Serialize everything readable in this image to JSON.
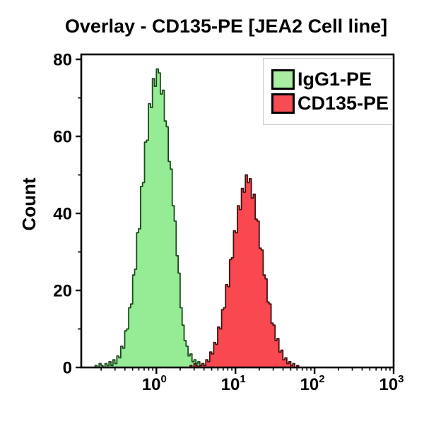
{
  "figure": {
    "background": "#ffffff",
    "frame_color": "#000000",
    "text_color": "#000000"
  },
  "chart_data": {
    "type": "area",
    "subtype": "flow-cytometry-histogram-overlay",
    "title": "Overlay - CD135-PE [JEA2 Cell line]",
    "xlabel": "",
    "ylabel": "Count",
    "xscale": "log10",
    "x_range_log10": [
      -0.95,
      3
    ],
    "ylim": [
      0,
      80
    ],
    "grid": false,
    "legend_position": "top-right",
    "x_axis": {
      "ticks": [
        {
          "base": "10",
          "exp": "0",
          "value": 1
        },
        {
          "base": "10",
          "exp": "1",
          "value": 10
        },
        {
          "base": "10",
          "exp": "2",
          "value": 100
        },
        {
          "base": "10",
          "exp": "3",
          "value": 1000
        }
      ]
    },
    "y_axis": {
      "ticks": [
        0,
        20,
        40,
        60,
        80
      ],
      "minor_ticks": [
        10,
        30,
        50,
        70
      ]
    },
    "series": [
      {
        "name": "IgG1-PE",
        "fill": "#95ec95",
        "stroke": "#1b4a1b",
        "legend_fill": "#a8eda2",
        "peak_count": 77.5,
        "peak_x_log10": 0.0,
        "x0": -0.8,
        "dx": 0.025,
        "counts": [
          0,
          0.5,
          0,
          1,
          0.5,
          0,
          1,
          0.5,
          1.5,
          0.5,
          2,
          1,
          3,
          2.5,
          5.5,
          5,
          9.5,
          10,
          15.5,
          16.5,
          24,
          25.5,
          35,
          36,
          47,
          48,
          58.5,
          59,
          68.5,
          67.5,
          75,
          73,
          77.5,
          76.5,
          71,
          72,
          64,
          62.5,
          53.5,
          51.5,
          42,
          38,
          29,
          24.5,
          15.5,
          11,
          7,
          5.5,
          3,
          3.5,
          1.5,
          2,
          1,
          1.5,
          0.5,
          1,
          0.5,
          0.5,
          0,
          0.5,
          0,
          0.5,
          0,
          0,
          1,
          0,
          0.5,
          0,
          0,
          0.5,
          0,
          1,
          0,
          0,
          0.5,
          0,
          0.5,
          0,
          1,
          0,
          0,
          0.5,
          0,
          0.5,
          0,
          0,
          1,
          0,
          0.5,
          0,
          0.5,
          0,
          1,
          0,
          0.5,
          0
        ]
      },
      {
        "name": "CD135-PE",
        "fill": "#f9484f",
        "stroke": "#44100f",
        "legend_fill": "#f64d54",
        "peak_count": 50,
        "peak_x_log10": 1.125,
        "x0": 0.4,
        "dx": 0.025,
        "counts": [
          0,
          0.5,
          0,
          1,
          0.5,
          0,
          0.5,
          1,
          0.5,
          2,
          1.5,
          4,
          3.5,
          6.5,
          6,
          10.5,
          10,
          15,
          15.5,
          21.5,
          21,
          28,
          28.5,
          35.5,
          35,
          42,
          41,
          46.5,
          45.5,
          50,
          48,
          49,
          44,
          45,
          38.5,
          38,
          31,
          30.5,
          24,
          23,
          17,
          16.5,
          11.5,
          11,
          7,
          7.5,
          4,
          4.5,
          2,
          2.5,
          1,
          1.5,
          0.5,
          1,
          0,
          0.5,
          0
        ]
      }
    ]
  }
}
